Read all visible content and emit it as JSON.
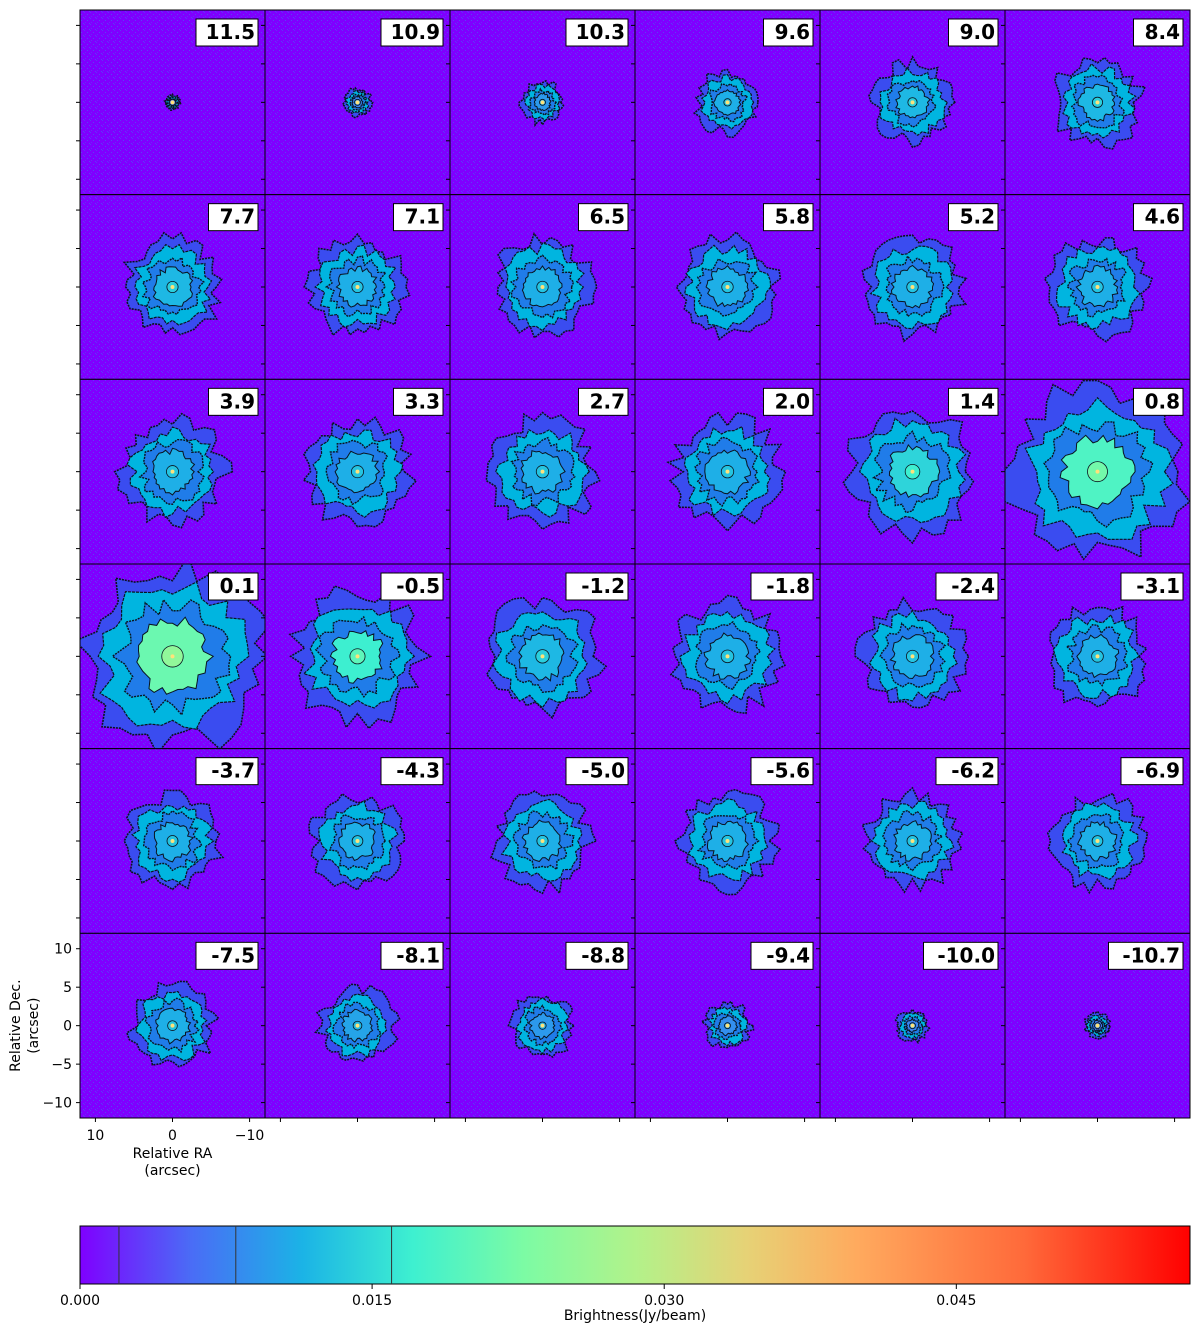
{
  "chart_data": {
    "type": "heatmap",
    "title": "",
    "panel_layout": "6 columns x 6 rows channel-map grid",
    "channels": [
      "11.5",
      "10.9",
      "10.3",
      "9.6",
      "9.0",
      "8.4",
      "7.7",
      "7.1",
      "6.5",
      "5.8",
      "5.2",
      "4.6",
      "3.9",
      "3.3",
      "2.7",
      "2.0",
      "1.4",
      "0.8",
      "0.1",
      "-0.5",
      "-1.2",
      "-1.8",
      "-2.4",
      "-3.1",
      "-3.7",
      "-4.3",
      "-5.0",
      "-5.6",
      "-6.2",
      "-6.9",
      "-7.5",
      "-8.1",
      "-8.8",
      "-9.4",
      "-10.0",
      "-10.7"
    ],
    "emission_extent": [
      0.07,
      0.13,
      0.2,
      0.3,
      0.38,
      0.42,
      0.46,
      0.46,
      0.47,
      0.47,
      0.47,
      0.47,
      0.5,
      0.5,
      0.51,
      0.51,
      0.6,
      0.82,
      0.88,
      0.62,
      0.55,
      0.52,
      0.5,
      0.48,
      0.45,
      0.44,
      0.46,
      0.46,
      0.45,
      0.44,
      0.4,
      0.36,
      0.3,
      0.22,
      0.15,
      0.12
    ],
    "peak_brightness": [
      0.006,
      0.009,
      0.011,
      0.013,
      0.014,
      0.014,
      0.014,
      0.013,
      0.013,
      0.013,
      0.013,
      0.013,
      0.013,
      0.013,
      0.013,
      0.013,
      0.017,
      0.022,
      0.025,
      0.02,
      0.014,
      0.013,
      0.013,
      0.013,
      0.013,
      0.013,
      0.013,
      0.013,
      0.013,
      0.013,
      0.013,
      0.012,
      0.011,
      0.01,
      0.009,
      0.008
    ],
    "xlabel": "Relative RA\n(arcsec)",
    "ylabel": "Relative Dec.\n(arcsec)",
    "xlim": [
      12,
      -12
    ],
    "ylim": [
      -12,
      12
    ],
    "x_ticks": [
      "10",
      "0",
      "−10"
    ],
    "y_ticks": [
      "10",
      "5",
      "0",
      "−5",
      "−10"
    ],
    "colorbar": {
      "label": "Brightness(Jy/beam)",
      "range": [
        0.0,
        0.057
      ],
      "ticks": [
        "0.000",
        "0.015",
        "0.030",
        "0.045"
      ],
      "contour_levels": [
        0.002,
        0.008,
        0.016
      ],
      "colormap": "rainbow"
    },
    "colors": {
      "background": "#7f00ff",
      "low": "#3a4cf0",
      "mid": "#00b5e0",
      "high": "#80ffb4",
      "contour": "#0a1420"
    }
  }
}
